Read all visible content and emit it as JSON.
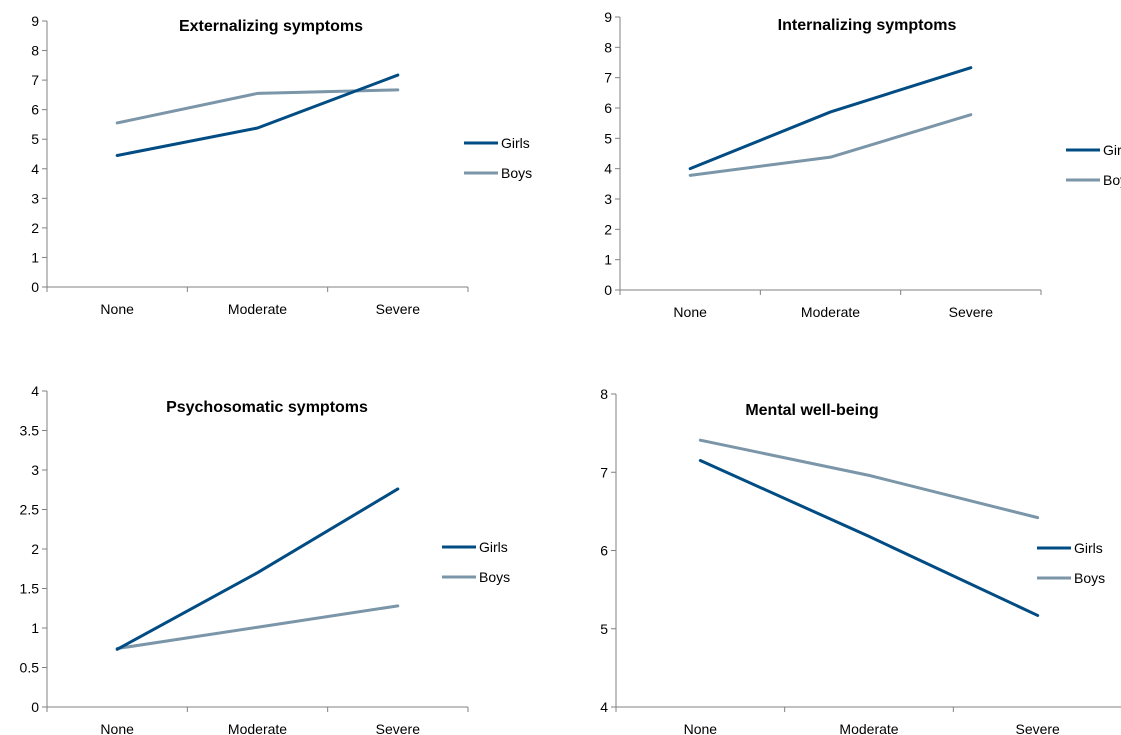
{
  "colors": {
    "girls": "#004c83",
    "boys": "#7b96a8",
    "axis": "#808080"
  },
  "chart_data": [
    {
      "type": "line",
      "title": "Externalizing symptoms",
      "categories": [
        "None",
        "Moderate",
        "Severe"
      ],
      "series": [
        {
          "name": "Girls",
          "values": [
            4.45,
            5.38,
            7.17
          ]
        },
        {
          "name": "Boys",
          "values": [
            5.55,
            6.55,
            6.67
          ]
        }
      ],
      "xlabel": "",
      "ylabel": "",
      "ylim": [
        0,
        9
      ],
      "yticks": [
        "0",
        "1",
        "2",
        "3",
        "4",
        "5",
        "6",
        "7",
        "8",
        "9"
      ],
      "legend": "right"
    },
    {
      "type": "line",
      "title": "Internalizing symptoms",
      "categories": [
        "None",
        "Moderate",
        "Severe"
      ],
      "series": [
        {
          "name": "Girls",
          "values": [
            4.0,
            5.87,
            7.33
          ]
        },
        {
          "name": "Boys",
          "values": [
            3.78,
            4.38,
            5.78
          ]
        }
      ],
      "xlabel": "",
      "ylabel": "",
      "ylim": [
        0,
        9
      ],
      "yticks": [
        "0",
        "1",
        "2",
        "3",
        "4",
        "5",
        "6",
        "7",
        "8",
        "9"
      ],
      "legend": "right"
    },
    {
      "type": "line",
      "title": "Psychosomatic symptoms",
      "categories": [
        "None",
        "Moderate",
        "Severe"
      ],
      "series": [
        {
          "name": "Girls",
          "values": [
            0.73,
            1.7,
            2.76
          ]
        },
        {
          "name": "Boys",
          "values": [
            0.74,
            1.01,
            1.28
          ]
        }
      ],
      "xlabel": "",
      "ylabel": "",
      "ylim": [
        0,
        4
      ],
      "yticks": [
        "0",
        "0.5",
        "1",
        "1.5",
        "2",
        "2.5",
        "3",
        "3.5",
        "4"
      ],
      "legend": "right"
    },
    {
      "type": "line",
      "title": "Mental well-being",
      "categories": [
        "None",
        "Moderate",
        "Severe"
      ],
      "series": [
        {
          "name": "Girls",
          "values": [
            7.15,
            6.18,
            5.17
          ]
        },
        {
          "name": "Boys",
          "values": [
            7.41,
            6.96,
            6.42
          ]
        }
      ],
      "xlabel": "",
      "ylabel": "",
      "ylim": [
        4,
        8
      ],
      "yticks": [
        "4",
        "5",
        "6",
        "7",
        "8"
      ],
      "legend": "right"
    }
  ]
}
